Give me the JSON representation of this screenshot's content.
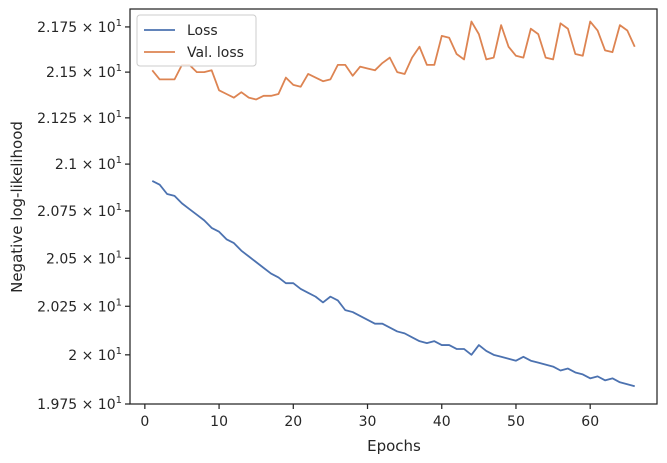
{
  "chart_data": {
    "type": "line",
    "title": "",
    "xlabel": "Epochs",
    "ylabel": "Negative log-likelihood",
    "xlim": [
      -2,
      69
    ],
    "ylim": [
      19.75,
      21.85
    ],
    "y_scale": "log",
    "grid": false,
    "legend_position": "top-left",
    "x_ticks": [
      0,
      10,
      20,
      30,
      40,
      50,
      60
    ],
    "x_tick_labels": [
      "0",
      "10",
      "20",
      "30",
      "40",
      "50",
      "60"
    ],
    "y_ticks": [
      19.75,
      20.0,
      20.25,
      20.5,
      20.75,
      21.0,
      21.25,
      21.5,
      21.75
    ],
    "y_tick_labels": [
      "1.975 × 10^1",
      "2 × 10^1",
      "2.025 × 10^1",
      "2.05 × 10^1",
      "2.075 × 10^1",
      "2.1 × 10^1",
      "2.125 × 10^1",
      "2.15 × 10^1",
      "2.175 × 10^1"
    ],
    "x": [
      1,
      2,
      3,
      4,
      5,
      6,
      7,
      8,
      9,
      10,
      11,
      12,
      13,
      14,
      15,
      16,
      17,
      18,
      19,
      20,
      21,
      22,
      23,
      24,
      25,
      26,
      27,
      28,
      29,
      30,
      31,
      32,
      33,
      34,
      35,
      36,
      37,
      38,
      39,
      40,
      41,
      42,
      43,
      44,
      45,
      46,
      47,
      48,
      49,
      50,
      51,
      52,
      53,
      54,
      55,
      56,
      57,
      58,
      59,
      60,
      61,
      62,
      63,
      64,
      65,
      66
    ],
    "series": [
      {
        "name": "Loss",
        "color": "#4c72b0",
        "values": [
          20.91,
          20.89,
          20.84,
          20.83,
          20.79,
          20.76,
          20.73,
          20.7,
          20.66,
          20.64,
          20.6,
          20.58,
          20.54,
          20.51,
          20.48,
          20.45,
          20.42,
          20.4,
          20.37,
          20.37,
          20.34,
          20.32,
          20.3,
          20.27,
          20.3,
          20.28,
          20.23,
          20.22,
          20.2,
          20.18,
          20.16,
          20.16,
          20.14,
          20.12,
          20.11,
          20.09,
          20.07,
          20.06,
          20.07,
          20.05,
          20.05,
          20.03,
          20.03,
          20.0,
          20.05,
          20.02,
          20.0,
          19.99,
          19.98,
          19.97,
          19.99,
          19.97,
          19.96,
          19.95,
          19.94,
          19.92,
          19.93,
          19.91,
          19.9,
          19.88,
          19.89,
          19.87,
          19.88,
          19.86,
          19.85,
          19.84
        ]
      },
      {
        "name": "Val. loss",
        "color": "#dd8452",
        "values": [
          21.51,
          21.46,
          21.46,
          21.46,
          21.54,
          21.54,
          21.5,
          21.5,
          21.51,
          21.4,
          21.38,
          21.36,
          21.39,
          21.36,
          21.35,
          21.37,
          21.37,
          21.38,
          21.47,
          21.43,
          21.42,
          21.49,
          21.47,
          21.45,
          21.46,
          21.54,
          21.54,
          21.48,
          21.53,
          21.52,
          21.51,
          21.55,
          21.58,
          21.5,
          21.49,
          21.58,
          21.64,
          21.54,
          21.54,
          21.7,
          21.69,
          21.6,
          21.57,
          21.78,
          21.71,
          21.57,
          21.58,
          21.76,
          21.64,
          21.59,
          21.58,
          21.74,
          21.71,
          21.58,
          21.57,
          21.77,
          21.74,
          21.6,
          21.59,
          21.78,
          21.73,
          21.62,
          21.61,
          21.76,
          21.73,
          21.64
        ]
      }
    ]
  }
}
